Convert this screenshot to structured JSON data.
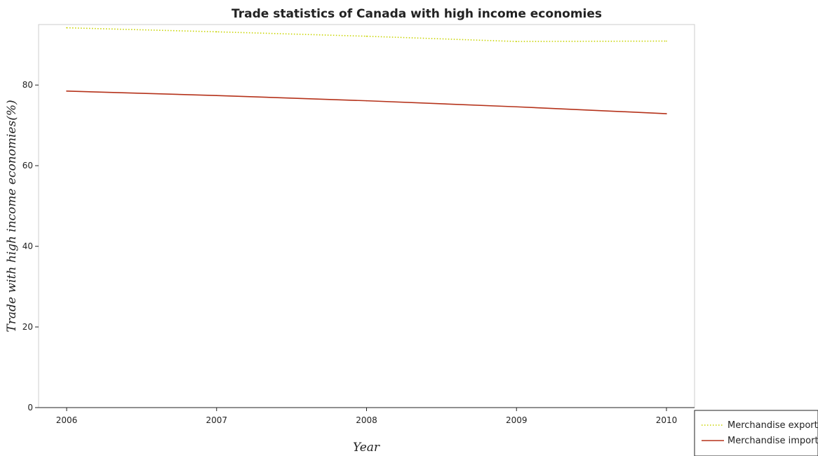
{
  "chart_data": {
    "type": "line",
    "title": "Trade statistics of Canada with high income economies",
    "xlabel": "Year",
    "ylabel": "Trade with high income economies(%)",
    "categories": [
      "2006",
      "2007",
      "2008",
      "2009",
      "2010"
    ],
    "ylim": [
      0,
      95
    ],
    "yticks": [
      0,
      20,
      40,
      60,
      80
    ],
    "grid": false,
    "legend_position": "bottom-right",
    "series": [
      {
        "name": "Merchandise exports",
        "color": "#c8d400",
        "style": "dotted",
        "values": [
          94.2,
          93.2,
          92.1,
          90.8,
          90.9
        ]
      },
      {
        "name": "Merchandise imports",
        "color": "#b5321a",
        "style": "solid",
        "values": [
          78.5,
          77.4,
          76.1,
          74.6,
          72.9
        ]
      }
    ]
  }
}
